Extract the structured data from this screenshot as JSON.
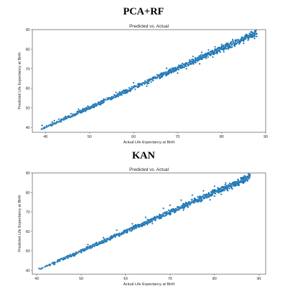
{
  "panels": [
    {
      "label": "PCA+RF"
    },
    {
      "label": "KAN"
    }
  ],
  "chart_data": [
    {
      "type": "scatter",
      "title": "Predicted vs. Actual",
      "xlabel": "Actual Life Expectancy at Birth",
      "ylabel": "Predicted Life Expectancy at Birth",
      "xlim": [
        37,
        90
      ],
      "ylim": [
        37.5,
        90
      ],
      "xticks": [
        40,
        50,
        60,
        70,
        80,
        90
      ],
      "yticks": [
        40,
        50,
        60,
        70,
        80,
        90
      ],
      "point_color": "#1f77b4",
      "line_color": "#4a90c8",
      "fit_line": {
        "x": [
          39,
          88
        ],
        "y": [
          39,
          88.5
        ]
      },
      "points": [
        [
          39.2,
          41.0
        ],
        [
          41.5,
          42.8
        ],
        [
          43.0,
          44.2
        ],
        [
          44.5,
          45.6
        ],
        [
          45.8,
          47.0
        ],
        [
          47.2,
          48.1
        ],
        [
          48.5,
          49.6
        ],
        [
          49.6,
          50.9
        ],
        [
          50.8,
          51.8
        ],
        [
          52.0,
          52.9
        ],
        [
          53.2,
          54.5
        ],
        [
          54.4,
          55.2
        ],
        [
          55.6,
          56.6
        ],
        [
          56.8,
          58.1
        ],
        [
          57.9,
          59.0
        ],
        [
          59.0,
          60.2
        ],
        [
          60.2,
          61.3
        ],
        [
          61.4,
          62.1
        ],
        [
          62.6,
          63.7
        ],
        [
          63.7,
          64.5
        ],
        [
          64.9,
          65.8
        ],
        [
          66.0,
          67.1
        ],
        [
          67.2,
          68.2
        ],
        [
          68.3,
          69.4
        ],
        [
          69.5,
          70.4
        ],
        [
          70.6,
          71.8
        ],
        [
          71.8,
          72.7
        ],
        [
          72.9,
          73.9
        ],
        [
          74.1,
          75.2
        ],
        [
          75.2,
          76.1
        ],
        [
          76.3,
          77.4
        ],
        [
          77.5,
          78.6
        ],
        [
          78.6,
          79.5
        ],
        [
          79.8,
          80.7
        ],
        [
          80.9,
          81.9
        ],
        [
          82.0,
          82.8
        ],
        [
          83.2,
          84.1
        ],
        [
          84.3,
          85.0
        ],
        [
          85.5,
          86.2
        ],
        [
          86.6,
          87.0
        ],
        [
          87.5,
          85.5
        ],
        [
          43.5,
          42.8
        ],
        [
          46.5,
          45.9
        ],
        [
          49.0,
          48.2
        ],
        [
          52.5,
          51.6
        ],
        [
          55.0,
          54.3
        ],
        [
          58.5,
          57.8
        ],
        [
          61.0,
          60.4
        ],
        [
          64.0,
          63.2
        ],
        [
          66.5,
          65.8
        ],
        [
          69.0,
          68.3
        ],
        [
          71.5,
          70.6
        ],
        [
          74.0,
          73.1
        ],
        [
          76.5,
          75.4
        ],
        [
          79.0,
          77.8
        ],
        [
          81.5,
          80.1
        ],
        [
          84.0,
          82.7
        ],
        [
          86.0,
          84.6
        ],
        [
          73.5,
          76.3
        ],
        [
          75.5,
          78.4
        ],
        [
          77.0,
          79.6
        ],
        [
          78.5,
          81.2
        ],
        [
          80.0,
          82.4
        ],
        [
          82.5,
          84.9
        ],
        [
          72.0,
          70.0
        ],
        [
          75.0,
          72.5
        ],
        [
          78.0,
          76.0
        ],
        [
          80.5,
          78.6
        ],
        [
          83.0,
          81.5
        ],
        [
          85.0,
          83.0
        ],
        [
          60.0,
          62.8
        ],
        [
          63.0,
          61.1
        ],
        [
          67.5,
          70.2
        ],
        [
          70.0,
          67.8
        ],
        [
          56.0,
          57.9
        ],
        [
          51.0,
          50.2
        ],
        [
          47.5,
          49.3
        ],
        [
          42.0,
          43.5
        ]
      ]
    },
    {
      "type": "scatter",
      "title": "Predicted vs. Actual",
      "xlabel": "Actual Life Expectancy at Birth",
      "ylabel": "Predicted Life Expectancy at Birth",
      "xlim": [
        39,
        91.5
      ],
      "ylim": [
        38,
        90
      ],
      "xticks": [
        40,
        50,
        60,
        70,
        80,
        90
      ],
      "yticks": [
        40,
        50,
        60,
        70,
        80,
        90
      ],
      "point_color": "#1f77b4",
      "line_color": "#4a90c8",
      "fit_line": {
        "x": [
          40.5,
          88
        ],
        "y": [
          40.5,
          88
        ]
      },
      "points": [
        [
          40.5,
          41.0
        ],
        [
          42.0,
          42.1
        ],
        [
          43.5,
          43.8
        ],
        [
          45.0,
          45.1
        ],
        [
          46.5,
          46.9
        ],
        [
          48.0,
          48.2
        ],
        [
          49.5,
          49.8
        ],
        [
          50.8,
          51.0
        ],
        [
          52.1,
          52.6
        ],
        [
          53.4,
          53.7
        ],
        [
          54.7,
          55.2
        ],
        [
          56.0,
          56.3
        ],
        [
          57.3,
          57.9
        ],
        [
          58.6,
          59.0
        ],
        [
          59.9,
          60.5
        ],
        [
          61.2,
          61.6
        ],
        [
          62.5,
          63.1
        ],
        [
          63.8,
          64.2
        ],
        [
          65.1,
          65.9
        ],
        [
          66.4,
          67.0
        ],
        [
          67.7,
          68.3
        ],
        [
          69.0,
          69.8
        ],
        [
          70.3,
          71.0
        ],
        [
          71.6,
          72.5
        ],
        [
          72.9,
          73.6
        ],
        [
          74.2,
          75.1
        ],
        [
          75.5,
          76.3
        ],
        [
          76.8,
          77.4
        ],
        [
          78.1,
          78.9
        ],
        [
          79.4,
          80.0
        ],
        [
          80.7,
          81.2
        ],
        [
          82.0,
          82.6
        ],
        [
          83.3,
          83.7
        ],
        [
          84.6,
          85.1
        ],
        [
          85.9,
          86.0
        ],
        [
          87.2,
          86.8
        ],
        [
          44.0,
          43.0
        ],
        [
          47.0,
          46.2
        ],
        [
          50.0,
          49.1
        ],
        [
          53.0,
          52.3
        ],
        [
          56.5,
          55.6
        ],
        [
          59.5,
          58.9
        ],
        [
          62.0,
          61.3
        ],
        [
          65.0,
          64.1
        ],
        [
          68.0,
          66.8
        ],
        [
          71.0,
          69.6
        ],
        [
          74.0,
          72.4
        ],
        [
          77.0,
          75.3
        ],
        [
          80.0,
          78.1
        ],
        [
          83.0,
          80.9
        ],
        [
          85.5,
          83.6
        ],
        [
          70.0,
          73.4
        ],
        [
          72.5,
          76.0
        ],
        [
          75.0,
          78.6
        ],
        [
          77.5,
          80.8
        ],
        [
          80.0,
          83.2
        ],
        [
          82.5,
          84.8
        ],
        [
          68.5,
          71.8
        ],
        [
          64.5,
          67.2
        ],
        [
          61.5,
          63.9
        ],
        [
          58.0,
          60.6
        ],
        [
          79.0,
          76.2
        ],
        [
          81.5,
          79.0
        ],
        [
          84.0,
          81.8
        ],
        [
          86.5,
          84.9
        ],
        [
          73.0,
          70.9
        ],
        [
          66.0,
          64.0
        ],
        [
          55.0,
          56.8
        ],
        [
          51.5,
          53.2
        ],
        [
          48.5,
          47.4
        ]
      ]
    }
  ]
}
